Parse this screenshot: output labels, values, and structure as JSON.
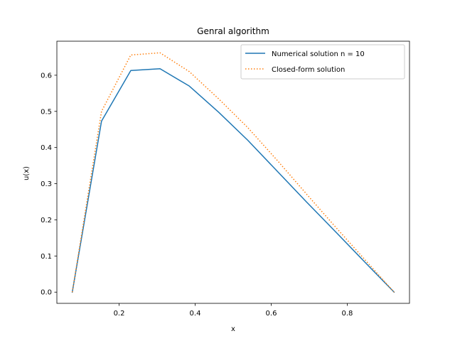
{
  "chart_data": {
    "type": "line",
    "title": "Genral algorithm",
    "xlabel": "x",
    "ylabel": "u(x)",
    "xlim": [
      0.0364,
      0.9636
    ],
    "ylim": [
      -0.031,
      0.6941
    ],
    "xticks": [
      0.2,
      0.4,
      0.6,
      0.8
    ],
    "xtick_labels": [
      "0.2",
      "0.4",
      "0.6",
      "0.8"
    ],
    "yticks": [
      0.0,
      0.1,
      0.2,
      0.3,
      0.4,
      0.5,
      0.6
    ],
    "ytick_labels": [
      "0.0",
      "0.1",
      "0.2",
      "0.3",
      "0.4",
      "0.5",
      "0.6"
    ],
    "grid": false,
    "legend_position": "top-right",
    "series": [
      {
        "name": "Numerical solution n = 10",
        "color": "#1f77b4",
        "style": "solid",
        "x": [
          0.0769,
          0.1538,
          0.2308,
          0.3077,
          0.3846,
          0.4615,
          0.5385,
          0.6154,
          0.6923,
          0.7692,
          0.8462,
          0.9231
        ],
        "y": [
          0.0,
          0.473,
          0.613,
          0.618,
          0.57,
          0.498,
          0.42,
          0.335,
          0.25,
          0.167,
          0.083,
          0.0
        ]
      },
      {
        "name": "Closed-form solution",
        "color": "#ff7f0e",
        "style": "dotted",
        "x": [
          0.0769,
          0.1538,
          0.2308,
          0.3077,
          0.3846,
          0.4615,
          0.5385,
          0.6154,
          0.6923,
          0.7692,
          0.8462,
          0.9231
        ],
        "y": [
          0.0,
          0.5,
          0.656,
          0.662,
          0.61,
          0.535,
          0.455,
          0.365,
          0.272,
          0.18,
          0.09,
          0.0
        ]
      }
    ]
  }
}
